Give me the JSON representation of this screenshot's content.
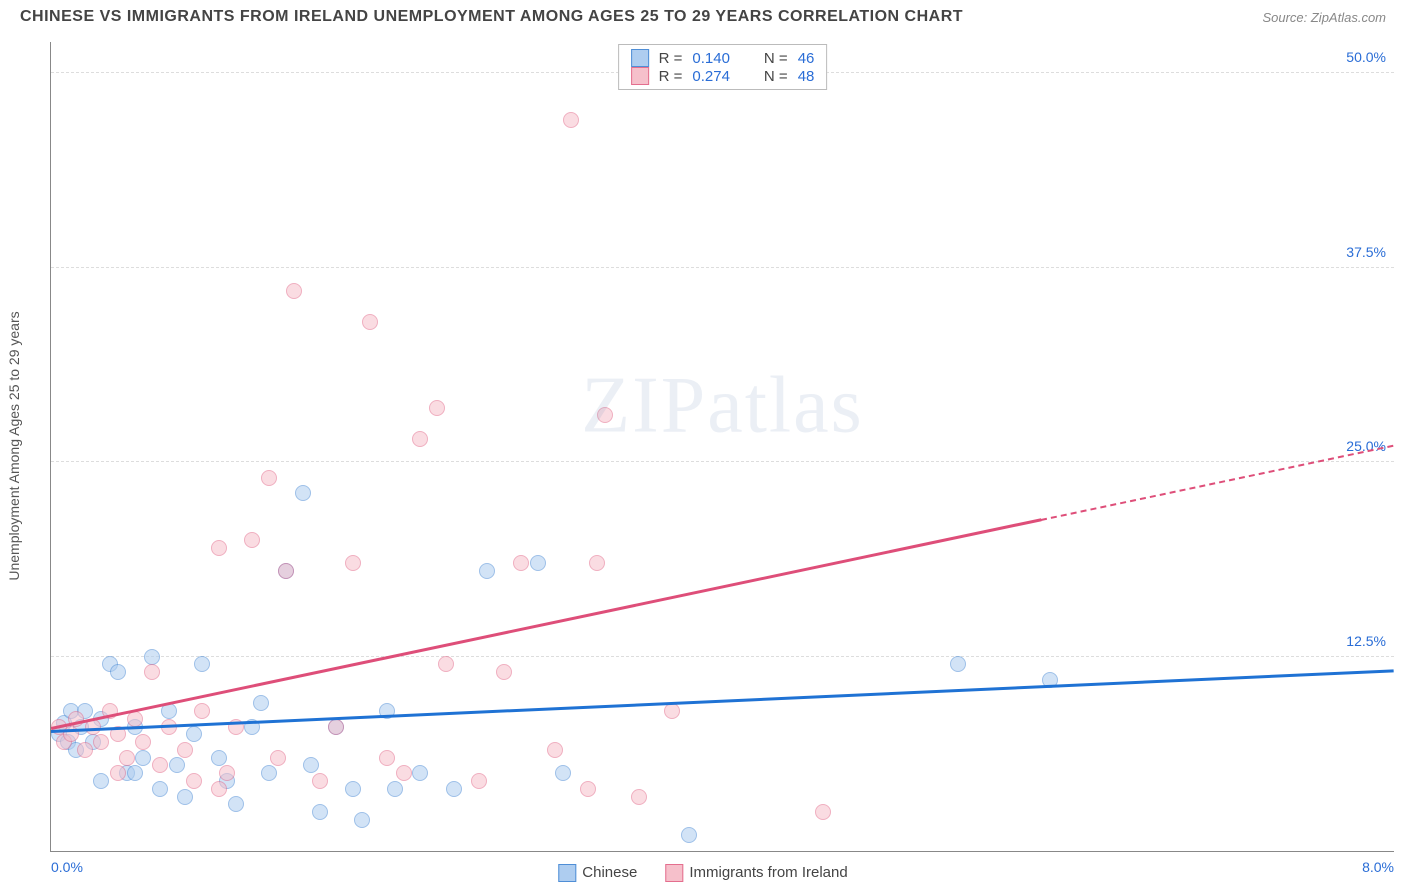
{
  "header": {
    "title": "CHINESE VS IMMIGRANTS FROM IRELAND UNEMPLOYMENT AMONG AGES 25 TO 29 YEARS CORRELATION CHART",
    "source": "Source: ZipAtlas.com"
  },
  "chart": {
    "type": "scatter",
    "yaxis_title": "Unemployment Among Ages 25 to 29 years",
    "xlim": [
      0.0,
      8.0
    ],
    "ylim": [
      0.0,
      52.0
    ],
    "xtick_labels": {
      "min": "0.0%",
      "max": "8.0%"
    },
    "ytick_positions": [
      12.5,
      25.0,
      37.5,
      50.0
    ],
    "ytick_labels": [
      "12.5%",
      "25.0%",
      "37.5%",
      "50.0%"
    ],
    "axis_label_color": "#2a6dd6",
    "grid_color": "#dddddd",
    "background_color": "#ffffff",
    "watermark": "ZIPatlas",
    "series": [
      {
        "name": "Chinese",
        "color_fill": "#aecdf0",
        "color_stroke": "#4f8ed6",
        "R": "0.140",
        "N": "46",
        "trend": {
          "y_at_xmin": 7.6,
          "y_at_xmax": 11.5,
          "solid_until_x": 8.0,
          "color": "#1f72d4"
        },
        "points": [
          [
            0.05,
            7.5
          ],
          [
            0.08,
            8.2
          ],
          [
            0.1,
            7.0
          ],
          [
            0.12,
            9.0
          ],
          [
            0.15,
            6.5
          ],
          [
            0.18,
            8.0
          ],
          [
            0.2,
            9.0
          ],
          [
            0.25,
            7.0
          ],
          [
            0.3,
            8.5
          ],
          [
            0.35,
            12.0
          ],
          [
            0.4,
            11.5
          ],
          [
            0.45,
            5.0
          ],
          [
            0.5,
            8.0
          ],
          [
            0.55,
            6.0
          ],
          [
            0.6,
            12.5
          ],
          [
            0.65,
            4.0
          ],
          [
            0.7,
            9.0
          ],
          [
            0.75,
            5.5
          ],
          [
            0.8,
            3.5
          ],
          [
            0.85,
            7.5
          ],
          [
            0.9,
            12.0
          ],
          [
            1.0,
            6.0
          ],
          [
            1.05,
            4.5
          ],
          [
            1.1,
            3.0
          ],
          [
            1.2,
            8.0
          ],
          [
            1.25,
            9.5
          ],
          [
            1.3,
            5.0
          ],
          [
            1.4,
            18.0
          ],
          [
            1.5,
            23.0
          ],
          [
            1.55,
            5.5
          ],
          [
            1.6,
            2.5
          ],
          [
            1.7,
            8.0
          ],
          [
            1.8,
            4.0
          ],
          [
            1.85,
            2.0
          ],
          [
            2.0,
            9.0
          ],
          [
            2.05,
            4.0
          ],
          [
            2.2,
            5.0
          ],
          [
            2.4,
            4.0
          ],
          [
            2.6,
            18.0
          ],
          [
            2.9,
            18.5
          ],
          [
            3.05,
            5.0
          ],
          [
            3.8,
            1.0
          ],
          [
            5.4,
            12.0
          ],
          [
            5.95,
            11.0
          ],
          [
            0.3,
            4.5
          ],
          [
            0.5,
            5.0
          ]
        ]
      },
      {
        "name": "Immigrants from Ireland",
        "color_fill": "#f6c0cb",
        "color_stroke": "#e46e8e",
        "R": "0.274",
        "N": "48",
        "trend": {
          "y_at_xmin": 7.8,
          "y_at_xmax": 26.0,
          "solid_until_x": 5.9,
          "color": "#de4e79"
        },
        "points": [
          [
            0.05,
            8.0
          ],
          [
            0.08,
            7.0
          ],
          [
            0.12,
            7.5
          ],
          [
            0.15,
            8.5
          ],
          [
            0.2,
            6.5
          ],
          [
            0.25,
            8.0
          ],
          [
            0.3,
            7.0
          ],
          [
            0.35,
            9.0
          ],
          [
            0.4,
            7.5
          ],
          [
            0.45,
            6.0
          ],
          [
            0.5,
            8.5
          ],
          [
            0.55,
            7.0
          ],
          [
            0.6,
            11.5
          ],
          [
            0.65,
            5.5
          ],
          [
            0.7,
            8.0
          ],
          [
            0.8,
            6.5
          ],
          [
            0.85,
            4.5
          ],
          [
            0.9,
            9.0
          ],
          [
            1.0,
            19.5
          ],
          [
            1.05,
            5.0
          ],
          [
            1.1,
            8.0
          ],
          [
            1.2,
            20.0
          ],
          [
            1.3,
            24.0
          ],
          [
            1.35,
            6.0
          ],
          [
            1.4,
            18.0
          ],
          [
            1.45,
            36.0
          ],
          [
            1.6,
            4.5
          ],
          [
            1.7,
            8.0
          ],
          [
            1.8,
            18.5
          ],
          [
            1.9,
            34.0
          ],
          [
            2.0,
            6.0
          ],
          [
            2.1,
            5.0
          ],
          [
            2.2,
            26.5
          ],
          [
            2.3,
            28.5
          ],
          [
            2.35,
            12.0
          ],
          [
            2.55,
            4.5
          ],
          [
            2.7,
            11.5
          ],
          [
            2.8,
            18.5
          ],
          [
            3.0,
            6.5
          ],
          [
            3.1,
            47.0
          ],
          [
            3.2,
            4.0
          ],
          [
            3.25,
            18.5
          ],
          [
            3.3,
            28.0
          ],
          [
            3.5,
            3.5
          ],
          [
            3.7,
            9.0
          ],
          [
            4.6,
            2.5
          ],
          [
            0.4,
            5.0
          ],
          [
            1.0,
            4.0
          ]
        ]
      }
    ],
    "legend_top": {
      "rows": [
        {
          "swatch_series": 0,
          "r_label": "R =",
          "r_value": "0.140",
          "n_label": "N =",
          "n_value": "46"
        },
        {
          "swatch_series": 1,
          "r_label": "R =",
          "r_value": "0.274",
          "n_label": "N =",
          "n_value": "48"
        }
      ]
    },
    "legend_bottom": {
      "items": [
        {
          "swatch_series": 0,
          "label": "Chinese"
        },
        {
          "swatch_series": 1,
          "label": "Immigrants from Ireland"
        }
      ]
    }
  }
}
